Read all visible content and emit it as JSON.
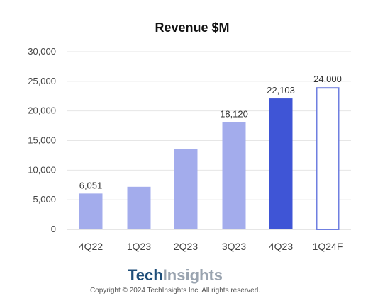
{
  "chart_data": {
    "type": "bar",
    "title": "Revenue $M",
    "xlabel": "",
    "ylabel": "",
    "ylim": [
      0,
      30000
    ],
    "yticks": [
      0,
      5000,
      10000,
      15000,
      20000,
      25000,
      30000
    ],
    "ytick_labels": [
      "0",
      "5,000",
      "10,000",
      "15,000",
      "20,000",
      "25,000",
      "30,000"
    ],
    "grid": true,
    "categories": [
      "4Q22",
      "1Q23",
      "2Q23",
      "3Q23",
      "4Q23",
      "1Q24F"
    ],
    "values": [
      6051,
      7192,
      13507,
      18120,
      22103,
      24000
    ],
    "data_labels": [
      "6,051",
      "",
      "",
      "18,120",
      "22,103",
      "24,000"
    ],
    "bar_styles": [
      "light",
      "light",
      "light",
      "light",
      "dark",
      "outline"
    ],
    "colors": {
      "light": "#a3acec",
      "dark": "#3f55d6",
      "outline": "#6f7fe0",
      "grid": "#e6e6e6",
      "axis": "#cccccc"
    }
  },
  "branding": {
    "logo_tech": "Tech",
    "logo_insights": "Insights",
    "copyright": "Copyright © 2024 TechInsights Inc.  All rights reserved."
  }
}
